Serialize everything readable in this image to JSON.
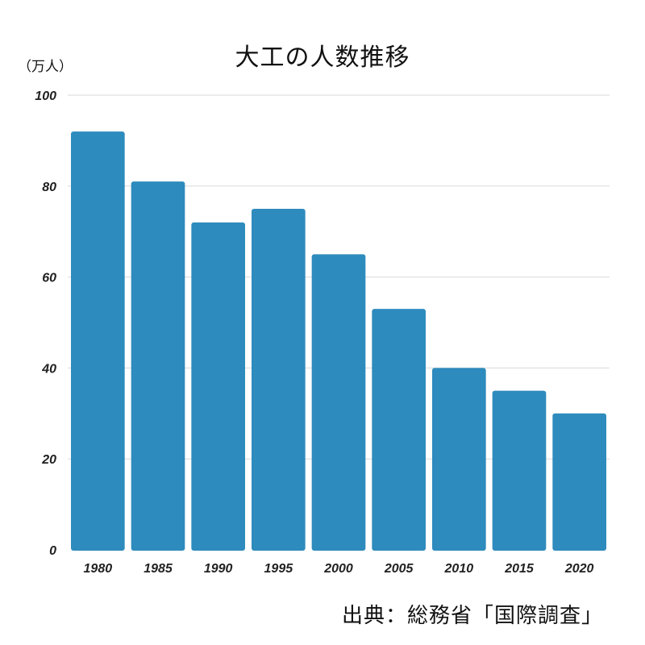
{
  "chart_data": {
    "type": "bar",
    "title": "大工の人数推移",
    "ylabel": "（万人）",
    "xlabel": "",
    "categories": [
      "1980",
      "1985",
      "1990",
      "1995",
      "2000",
      "2005",
      "2010",
      "2015",
      "2020"
    ],
    "values": [
      92,
      81,
      72,
      75,
      65,
      53,
      40,
      35,
      30
    ],
    "ylim": [
      0,
      100
    ],
    "yticks": [
      "0",
      "20",
      "40",
      "60",
      "80",
      "100"
    ],
    "grid": true,
    "bar_color": "#2e8bbd",
    "grid_color": "#d9d9d9"
  },
  "source": "出典：総務省「国際調査」"
}
